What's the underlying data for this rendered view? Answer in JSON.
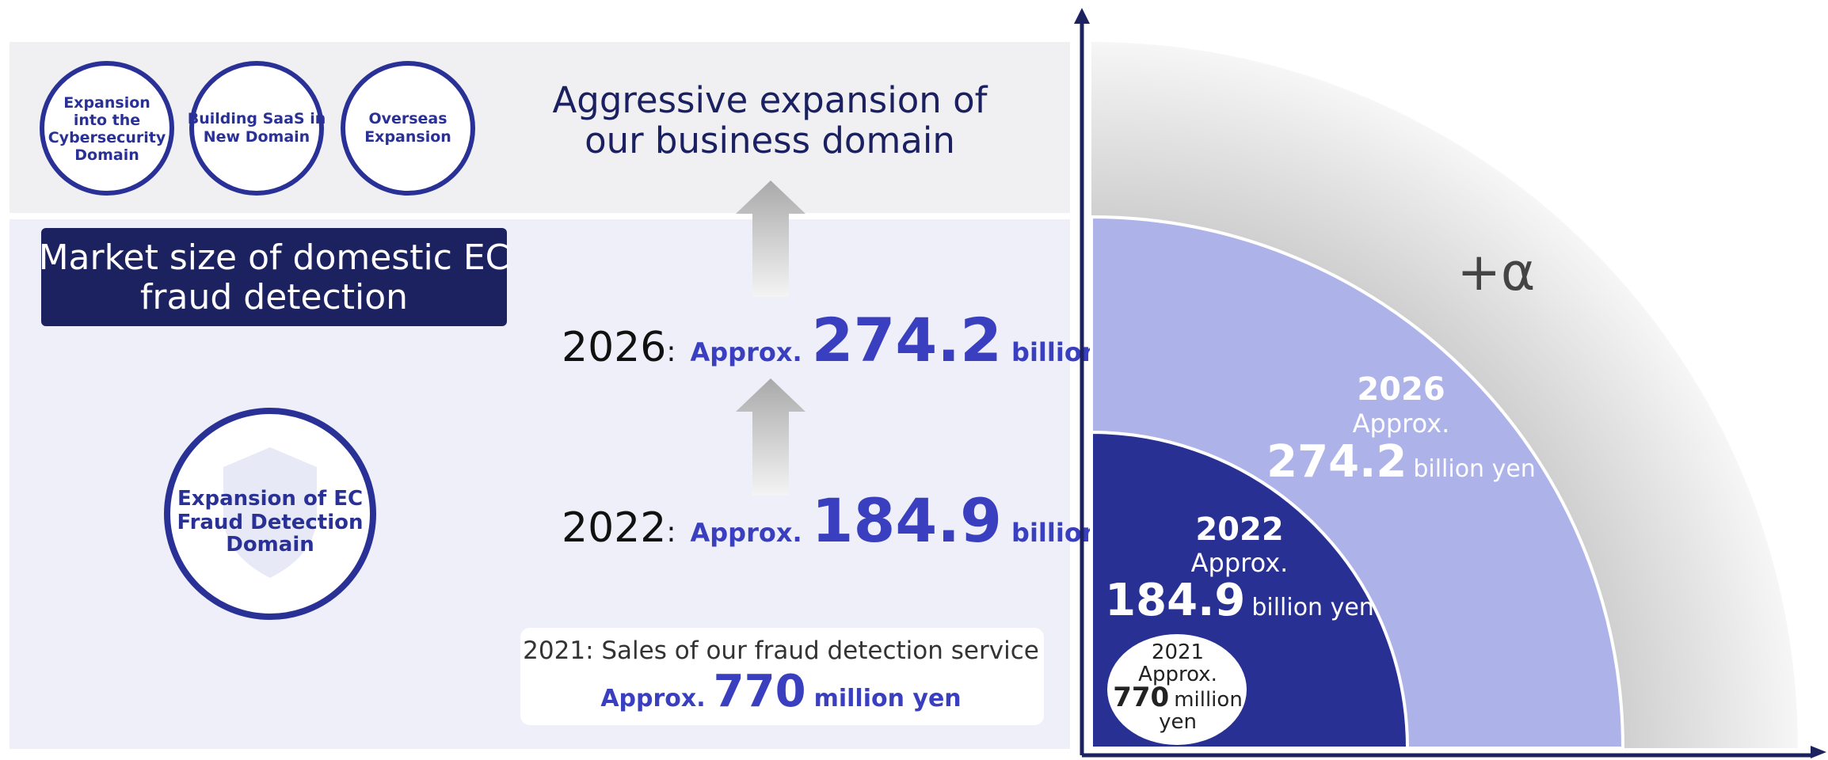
{
  "initiatives": [
    "Expansion into the Cybersecurity Domain",
    "Building SaaS in New Domain",
    "Overseas Expansion"
  ],
  "heading": [
    "Aggressive expansion of",
    "our business domain"
  ],
  "market_box": [
    "Market size of domestic EC",
    "fraud detection"
  ],
  "core_circle": [
    "Expansion of EC",
    "Fraud Detection",
    "Domain"
  ],
  "initiative_lines": [
    [
      "Expansion",
      "into the",
      "Cybersecurity",
      "Domain"
    ],
    [
      "Building SaaS in",
      "New Domain"
    ],
    [
      "Overseas",
      "Expansion"
    ]
  ],
  "forecasts": [
    {
      "year": "2026",
      "sep": ":",
      "prefix": "Approx.",
      "amount": "274.2",
      "unit": "billion yen"
    },
    {
      "year": "2022",
      "sep": ":",
      "prefix": "Approx.",
      "amount": "184.9",
      "unit": "billion yen"
    }
  ],
  "sales": {
    "title": "2021: Sales of our fraud detection service",
    "prefix": "Approx.",
    "amount": "770",
    "unit": "million yen"
  },
  "quadrant": {
    "alpha": "+α",
    "y2026": {
      "year": "2026",
      "prefix": "Approx.",
      "amount": "274.2",
      "unit": "billion yen"
    },
    "y2022": {
      "year": "2022",
      "prefix": "Approx.",
      "amount": "184.9",
      "unit": "billion yen"
    },
    "y2021": {
      "year": "2021",
      "prefix": "Approx.",
      "amount": "770",
      "unit1": "million",
      "unit2": "yen"
    }
  }
}
